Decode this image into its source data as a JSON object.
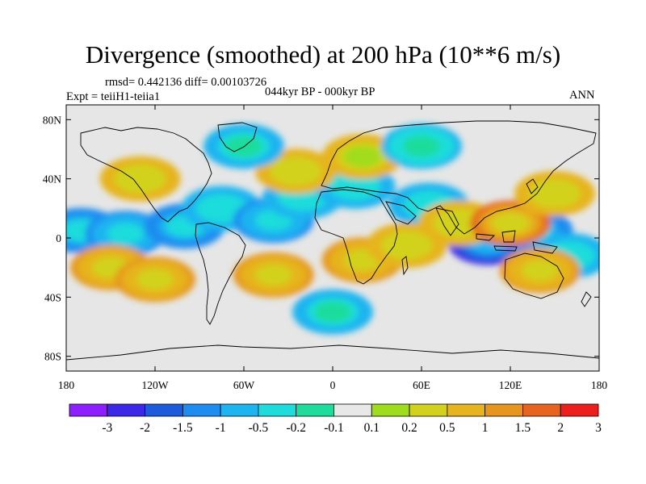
{
  "title": "Divergence (smoothed) at 200 hPa (10**6 m/s)",
  "stats_line": "rmsd= 0.442136 diff= 0.00103726",
  "experiment_label": "Expt = teiiH1-teiia1",
  "period_label": "044kyr BP - 000kyr BP",
  "season_label": "ANN",
  "map": {
    "projection": "cylindrical-equidistant",
    "lon_range": [
      -180,
      180
    ],
    "lat_range": [
      -90,
      90
    ],
    "lat_ticks": [
      {
        "value": 80,
        "label": "80N"
      },
      {
        "value": 40,
        "label": "40N"
      },
      {
        "value": 0,
        "label": "0"
      },
      {
        "value": -40,
        "label": "40S"
      },
      {
        "value": -80,
        "label": "80S"
      }
    ],
    "lon_ticks": [
      {
        "value": -180,
        "label": "180"
      },
      {
        "value": -120,
        "label": "120W"
      },
      {
        "value": -60,
        "label": "60W"
      },
      {
        "value": 0,
        "label": "0"
      },
      {
        "value": 60,
        "label": "60E"
      },
      {
        "value": 120,
        "label": "120E"
      },
      {
        "value": 180,
        "label": "180"
      }
    ],
    "missing_color": "#e6e6e6"
  },
  "colorbar": {
    "colors": [
      "#8c1eff",
      "#3c28e6",
      "#1e5adc",
      "#1e8cf0",
      "#1eb4f0",
      "#1edcdc",
      "#1edc9c",
      "#e8e8e8",
      "#a0dc1e",
      "#d2d21e",
      "#e6b41e",
      "#e6961e",
      "#e6641e",
      "#ef1e1e"
    ],
    "labels": [
      "-3",
      "-2",
      "-1.5",
      "-1",
      "-0.5",
      "-0.2",
      "-0.1",
      "0.1",
      "0.2",
      "0.5",
      "1",
      "1.5",
      "2",
      "3"
    ]
  },
  "field_anomalies": [
    {
      "lon": -170,
      "lat": 5,
      "value": -1.5
    },
    {
      "lon": -140,
      "lat": 3,
      "value": -1.3
    },
    {
      "lon": -100,
      "lat": 8,
      "value": -1.5
    },
    {
      "lon": -75,
      "lat": 20,
      "value": -1.0
    },
    {
      "lon": -40,
      "lat": 12,
      "value": -1.2
    },
    {
      "lon": -20,
      "lat": 28,
      "value": -1.0
    },
    {
      "lon": 15,
      "lat": 35,
      "value": -1.0
    },
    {
      "lon": 65,
      "lat": 22,
      "value": -0.9
    },
    {
      "lon": 105,
      "lat": -3,
      "value": -2.3
    },
    {
      "lon": 135,
      "lat": 5,
      "value": -1.5
    },
    {
      "lon": 160,
      "lat": -12,
      "value": -0.9
    },
    {
      "lon": -150,
      "lat": -20,
      "value": 1.3
    },
    {
      "lon": -120,
      "lat": -28,
      "value": 1.0
    },
    {
      "lon": -40,
      "lat": -25,
      "value": 1.0
    },
    {
      "lon": 20,
      "lat": -15,
      "value": 1.2
    },
    {
      "lon": 50,
      "lat": -5,
      "value": 0.9
    },
    {
      "lon": 85,
      "lat": 10,
      "value": 0.9
    },
    {
      "lon": 120,
      "lat": 10,
      "value": 1.6
    },
    {
      "lon": 150,
      "lat": 30,
      "value": 0.8
    },
    {
      "lon": -130,
      "lat": 40,
      "value": 0.8
    },
    {
      "lon": -25,
      "lat": 45,
      "value": 0.8
    },
    {
      "lon": 20,
      "lat": 55,
      "value": 0.7
    },
    {
      "lon": 140,
      "lat": -22,
      "value": 1.0
    },
    {
      "lon": -60,
      "lat": 62,
      "value": -0.8
    },
    {
      "lon": 0,
      "lat": -50,
      "value": -0.7
    },
    {
      "lon": 60,
      "lat": 62,
      "value": -0.6
    }
  ]
}
